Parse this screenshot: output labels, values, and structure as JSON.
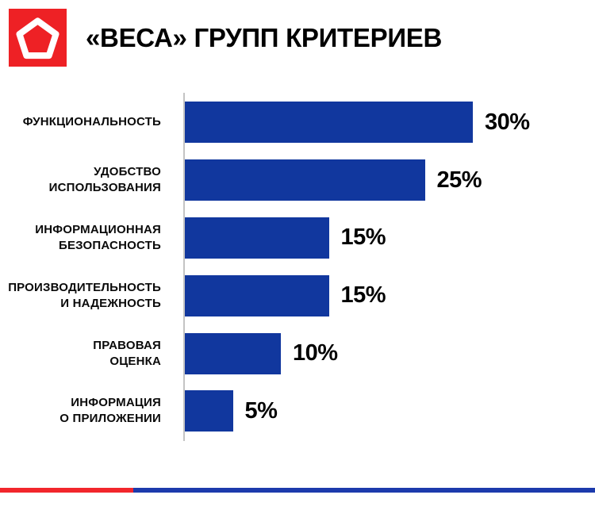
{
  "header": {
    "title": "«ВЕСА» ГРУПП КРИТЕРИЕВ",
    "logo": {
      "icon": "pentagon-icon",
      "background_color": "#EE2125",
      "glyph_color": "#FFFFFF"
    }
  },
  "chart_data": {
    "type": "bar",
    "orientation": "horizontal",
    "title": "«ВЕСА» ГРУПП КРИТЕРИЕВ",
    "categories": [
      "ФУНКЦИОНАЛЬНОСТЬ",
      "УДОБСТВО\nИСПОЛЬЗОВАНИЯ",
      "ИНФОРМАЦИОННАЯ\nБЕЗОПАСНОСТЬ",
      "ПРОИЗВОДИТЕЛЬНОСТЬ\nИ НАДЕЖНОСТЬ",
      "ПРАВОВАЯ\nОЦЕНКА",
      "ИНФОРМАЦИЯ\nО ПРИЛОЖЕНИИ"
    ],
    "values": [
      30,
      25,
      15,
      15,
      10,
      5
    ],
    "value_labels": [
      "30%",
      "25%",
      "15%",
      "15%",
      "10%",
      "5%"
    ],
    "xlabel": "",
    "ylabel": "",
    "xlim": [
      0,
      42
    ],
    "grid": false,
    "legend": false,
    "bar_color": "#11379E",
    "axis_line_color": "#C4C4C4",
    "label_color": "#0A0A0A"
  },
  "footer": {
    "divider_red_color": "#F2262C",
    "divider_blue_color": "#1C3AAC"
  }
}
